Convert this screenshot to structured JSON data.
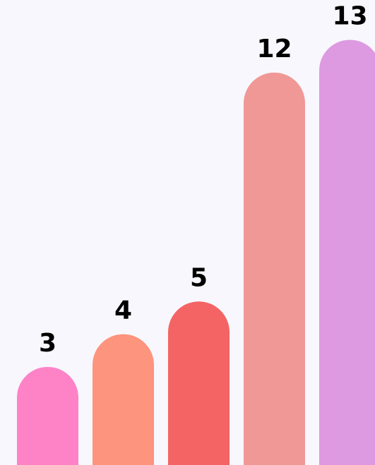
{
  "chart_data": {
    "type": "bar",
    "categories": [
      "",
      "",
      "",
      "",
      ""
    ],
    "values": [
      3,
      4,
      5,
      12,
      13
    ],
    "value_labels": [
      "3",
      "4",
      "5",
      "12",
      "13"
    ],
    "colors": [
      "#fd83c6",
      "#fd947d",
      "#f56464",
      "#ef9896",
      "#dd9ae1"
    ],
    "ylim": [
      0,
      13.6
    ],
    "grid": false,
    "legend": "none",
    "background": "#f9f7fe"
  }
}
